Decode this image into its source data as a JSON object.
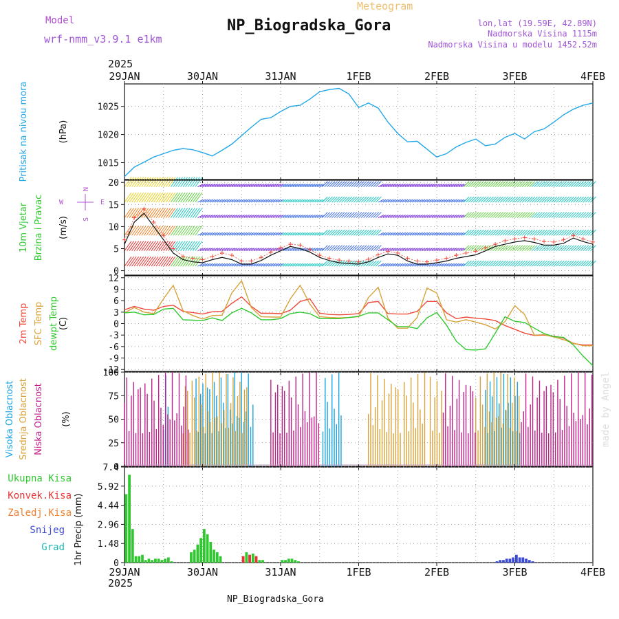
{
  "header": {
    "title": "NP_Biogradska_Gora",
    "model_label": "Model",
    "model_name": "wrf-nmm_v3.9.1 e1km",
    "product": "Meteogram",
    "coords": "lon,lat (19.59E, 42.89N)",
    "altitude": "Nadmorska Visina 1115m",
    "model_altitude": "Nadmorska Visina u modelu 1452.52m",
    "year_top": "2025",
    "year_bottom": "2025",
    "footer": "NP_Biogradska_Gora",
    "credit": "made by Angel"
  },
  "colors": {
    "pressure": "#22a7e8",
    "t2m": "#f04a3a",
    "tsfc": "#d8a23a",
    "dewpt": "#2fc92f",
    "cloud_high": "#1aa3e0",
    "cloud_mid": "#d8a23a",
    "cloud_low": "#c0208a",
    "rain_total": "#2fc92f",
    "rain_conv": "#e83434",
    "snow": "#3a49d8",
    "grad": "#20b8b8"
  },
  "chart_data": {
    "type": "line",
    "x_axis": {
      "ticks": [
        "29JAN",
        "30JAN",
        "31JAN",
        "1FEB",
        "2FEB",
        "3FEB",
        "4FEB"
      ],
      "range_hours": [
        0,
        144
      ],
      "tick_every_hours": 24
    },
    "panels": [
      {
        "id": "pressure",
        "ylabel_lines": [
          "Pritisak na nivou mora"
        ],
        "unit": "(hPa)",
        "yticks": [
          1015,
          1020,
          1025
        ],
        "ylim": [
          1012,
          1029
        ],
        "series": [
          {
            "id": "pressure",
            "x": [
              0,
              3,
              6,
              9,
              12,
              15,
              18,
              21,
              24,
              27,
              30,
              33,
              36,
              39,
              42,
              45,
              48,
              51,
              54,
              57,
              60,
              63,
              66,
              69,
              72,
              75,
              78,
              81,
              84,
              87,
              90,
              93,
              96,
              99,
              102,
              105,
              108,
              111,
              114,
              117,
              120,
              123,
              126,
              129,
              132,
              135,
              138,
              141,
              144
            ],
            "y": [
              1012.5,
              1014.2,
              1015.1,
              1016.0,
              1016.6,
              1017.2,
              1017.5,
              1017.3,
              1016.8,
              1016.2,
              1017.2,
              1018.3,
              1019.8,
              1021.3,
              1022.7,
              1023.0,
              1024.1,
              1025.0,
              1025.2,
              1026.3,
              1027.6,
              1028.0,
              1028.2,
              1027.2,
              1024.8,
              1025.6,
              1024.7,
              1022.2,
              1020.2,
              1018.7,
              1018.8,
              1017.4,
              1016.0,
              1016.6,
              1017.8,
              1018.6,
              1019.2,
              1018.0,
              1018.3,
              1019.5,
              1020.2,
              1019.2,
              1020.5,
              1021.0,
              1022.2,
              1023.5,
              1024.5,
              1025.2,
              1025.6
            ]
          }
        ]
      },
      {
        "id": "wind",
        "ylabel_lines": [
          "10m Vjetar",
          "Brzina i Pravac"
        ],
        "unit": "(m/s)",
        "yticks": [
          0,
          5,
          10,
          15,
          20
        ],
        "ylim": [
          -1,
          20.5
        ],
        "compass": [
          "N",
          "E",
          "W",
          "S"
        ],
        "series": [
          {
            "id": "wind_speed",
            "x": [
              0,
              3,
              6,
              9,
              12,
              15,
              18,
              21,
              24,
              27,
              30,
              33,
              36,
              39,
              42,
              45,
              48,
              51,
              54,
              57,
              60,
              63,
              66,
              69,
              72,
              75,
              78,
              81,
              84,
              87,
              90,
              93,
              96,
              99,
              102,
              105,
              108,
              111,
              114,
              117,
              120,
              123,
              126,
              129,
              132,
              135,
              138,
              141,
              144
            ],
            "y": [
              6,
              11,
              13,
              10,
              7,
              4,
              2.5,
              2,
              1.8,
              2.5,
              3,
              2.5,
              1.5,
              1.5,
              2.3,
              3.5,
              4.5,
              5.5,
              5,
              4.2,
              3,
              2.3,
              1.8,
              1.6,
              1.5,
              2,
              3,
              3.8,
              3.5,
              2.2,
              1.5,
              1.5,
              1.8,
              2.2,
              2.8,
              3.2,
              3.6,
              4.5,
              5.5,
              6,
              6.5,
              6.8,
              6.4,
              5.8,
              5.8,
              6.2,
              7.4,
              6.6,
              6.0
            ]
          },
          {
            "id": "wind_gust_marker",
            "x": [
              0,
              3,
              6,
              9,
              12,
              15,
              18,
              21,
              24,
              27,
              30,
              33,
              36,
              39,
              42,
              45,
              48,
              51,
              54,
              57,
              60,
              63,
              66,
              69,
              72,
              75,
              78,
              81,
              84,
              87,
              90,
              93,
              96,
              99,
              102,
              105,
              108,
              111,
              114,
              117,
              120,
              123,
              126,
              129,
              132,
              135,
              138,
              141,
              144
            ],
            "y": [
              7,
              12,
              14,
              11,
              8,
              5,
              3.2,
              2.8,
              2.5,
              3.2,
              4,
              3.5,
              2.2,
              2.2,
              3,
              4.2,
              5.2,
              6,
              5.8,
              4.8,
              3.5,
              2.8,
              2.4,
              2.2,
              2,
              2.6,
              3.6,
              4.4,
              4,
              2.8,
              2.2,
              2,
              2.4,
              2.8,
              3.5,
              4,
              4.4,
              5.2,
              6,
              6.8,
              7.2,
              7.5,
              7.2,
              6.6,
              6.5,
              7,
              8,
              7.2,
              6.5
            ]
          }
        ]
      },
      {
        "id": "temperature",
        "ylabel_lines": [
          "2m Temp",
          "SFC Temp",
          "dewpt Temp"
        ],
        "unit": "(C)",
        "yticks": [
          -12,
          -9,
          -6,
          -3,
          0,
          3,
          6,
          9,
          12
        ],
        "ylim": [
          -12.5,
          12.5
        ],
        "series": [
          {
            "id": "t2m",
            "x": [
              0,
              3,
              6,
              9,
              12,
              15,
              18,
              21,
              24,
              27,
              30,
              33,
              36,
              39,
              42,
              45,
              48,
              51,
              54,
              57,
              60,
              63,
              66,
              69,
              72,
              75,
              78,
              81,
              84,
              87,
              90,
              93,
              96,
              99,
              102,
              105,
              108,
              111,
              114,
              117,
              120,
              123,
              126,
              129,
              132,
              135,
              138,
              141,
              144
            ],
            "y": [
              3.6,
              4.5,
              3.8,
              3.5,
              4.5,
              4.8,
              3.2,
              2.9,
              2.5,
              3.1,
              3.2,
              5.3,
              7.0,
              4.5,
              2.7,
              2.7,
              2.6,
              3.5,
              5.8,
              6.5,
              2.7,
              2.4,
              2.3,
              2.4,
              2.6,
              5.5,
              5.8,
              2.6,
              2.5,
              2.5,
              3.2,
              5.8,
              5.8,
              2.8,
              1.3,
              1.7,
              1.4,
              1.2,
              0.8,
              -0.5,
              -1.5,
              -2.5,
              -3.1,
              -3.0,
              -3.3,
              -3.8,
              -5.2,
              -5.6,
              -5.6
            ]
          },
          {
            "id": "tsfc",
            "x": [
              0,
              3,
              6,
              9,
              12,
              15,
              18,
              21,
              24,
              27,
              30,
              33,
              36,
              39,
              42,
              45,
              48,
              51,
              54,
              57,
              60,
              63,
              66,
              69,
              72,
              75,
              78,
              81,
              84,
              87,
              90,
              93,
              96,
              99,
              102,
              105,
              108,
              111,
              114,
              117,
              120,
              123,
              126,
              129,
              132,
              135,
              138,
              141,
              144
            ],
            "y": [
              2.8,
              4.2,
              3.0,
              2.6,
              6.5,
              10.0,
              3.4,
              2.1,
              1.2,
              2.1,
              2.2,
              8.0,
              11.2,
              4.2,
              1.8,
              1.7,
              1.7,
              6.5,
              10.0,
              5.1,
              1.8,
              1.6,
              1.5,
              1.6,
              1.8,
              6.8,
              9.5,
              1.4,
              -1.2,
              -1.2,
              1.6,
              9.3,
              8.0,
              1.0,
              0.4,
              1.0,
              0.4,
              -0.3,
              -1.4,
              0.5,
              4.7,
              2.4,
              -3.0,
              -2.9,
              -3.5,
              -4.2,
              -5.1,
              -5.8,
              -5.8
            ]
          },
          {
            "id": "dewpt",
            "x": [
              0,
              3,
              6,
              9,
              12,
              15,
              18,
              21,
              24,
              27,
              30,
              33,
              36,
              39,
              42,
              45,
              48,
              51,
              54,
              57,
              60,
              63,
              66,
              69,
              72,
              75,
              78,
              81,
              84,
              87,
              90,
              93,
              96,
              99,
              102,
              105,
              108,
              111,
              114,
              117,
              120,
              123,
              126,
              129,
              132,
              135,
              138,
              141,
              144
            ],
            "y": [
              2.8,
              3.0,
              2.3,
              2.4,
              3.8,
              4.0,
              1.0,
              0.9,
              0.8,
              1.5,
              0.8,
              2.8,
              4.0,
              2.8,
              1.0,
              1.0,
              1.3,
              2.6,
              3.0,
              2.6,
              1.3,
              1.3,
              1.3,
              1.6,
              1.9,
              2.8,
              2.8,
              1.0,
              -0.8,
              -0.8,
              -1.3,
              1.5,
              2.9,
              -0.4,
              -4.6,
              -6.8,
              -6.9,
              -6.6,
              -2.5,
              1.8,
              0.6,
              0.3,
              -1.2,
              -2.6,
              -3.4,
              -3.6,
              -5.6,
              -8.5,
              -11.0
            ]
          }
        ]
      },
      {
        "id": "clouds",
        "ylabel_lines": [
          "Visoka Oblacnost",
          "Srednja Oblacnost",
          "Niska Oblacnost"
        ],
        "unit": "(%)",
        "yticks": [
          0,
          25,
          50,
          75,
          100
        ],
        "ylim": [
          0,
          100
        ],
        "bars": [
          {
            "id": "high",
            "segments": [
              [
                12,
                14
              ],
              [
                22,
                40
              ],
              [
                61,
                67
              ],
              [
                111,
                118
              ],
              [
                118,
                122
              ]
            ],
            "note": "high cloud cover bursts"
          },
          {
            "id": "mid",
            "segments": [
              [
                18,
                38
              ],
              [
                75,
                85
              ],
              [
                86,
                93
              ],
              [
                94,
                98
              ],
              [
                108,
                122
              ]
            ]
          },
          {
            "id": "low",
            "segments": [
              [
                0,
                20
              ],
              [
                45,
                60
              ],
              [
                98,
                108
              ],
              [
                122,
                144
              ]
            ]
          }
        ]
      },
      {
        "id": "precip",
        "ylabel_lines": [
          "1hr Precip (mm)"
        ],
        "legend": [
          "Ukupna Kisa",
          "Konvek.Kisa",
          "Zaledj.Kisa",
          "Snijeg",
          "Grad"
        ],
        "yticks": [
          0,
          1.48,
          2.96,
          4.44,
          5.92,
          7.4
        ],
        "ylim": [
          0,
          7.4
        ],
        "type": "bar",
        "series": [
          {
            "id": "total",
            "x": [
              0.5,
              1.5,
              2.5,
              3.5,
              4.5,
              5.5,
              6.5,
              7.5,
              8.5,
              9.5,
              10.5,
              11.5,
              12.5,
              13.5,
              14.5,
              20.5,
              21.5,
              22.5,
              23.5,
              24.5,
              25.5,
              26.5,
              27.5,
              28.5,
              29.5,
              36.5,
              37.5,
              38.5,
              39.5,
              40.5,
              41.5,
              42.5,
              48.5,
              49.5,
              50.5,
              51.5,
              52.5,
              53.5
            ],
            "y": [
              5.3,
              6.8,
              2.6,
              0.5,
              0.5,
              0.6,
              0.2,
              0.3,
              0.2,
              0.3,
              0.3,
              0.2,
              0.3,
              0.4,
              0.1,
              0.8,
              1.0,
              1.4,
              1.9,
              2.6,
              2.2,
              1.6,
              1.0,
              0.8,
              0.5,
              0.4,
              0.8,
              0.6,
              0.7,
              0.5,
              0.2,
              0.2,
              0.2,
              0.2,
              0.3,
              0.3,
              0.2,
              0.1
            ]
          },
          {
            "id": "snow",
            "x": [
              114.5,
              115.5,
              116.5,
              117.5,
              118.5,
              119.5,
              120.5,
              121.5,
              122.5,
              123.5,
              124.5,
              125.5
            ],
            "y": [
              0.1,
              0.2,
              0.2,
              0.3,
              0.3,
              0.4,
              0.6,
              0.4,
              0.4,
              0.3,
              0.2,
              0.1
            ]
          },
          {
            "id": "conv",
            "x": [
              36.5,
              38.5,
              40.5
            ],
            "y": [
              0.5,
              0.6,
              0.5
            ]
          }
        ]
      }
    ]
  }
}
